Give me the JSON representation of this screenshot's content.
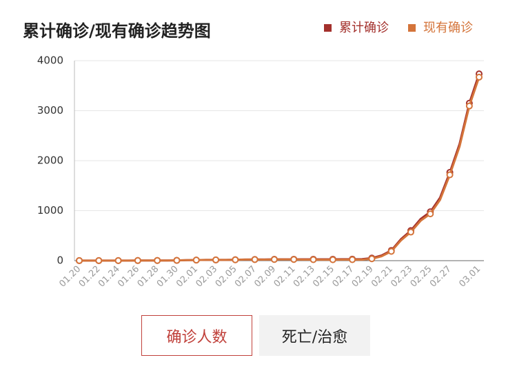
{
  "chart_data": {
    "type": "line",
    "title": "累计确诊/现有确诊趋势图",
    "categories": [
      "01.20",
      null,
      "01.22",
      null,
      "01.24",
      null,
      "01.26",
      null,
      "01.28",
      null,
      "01.30",
      null,
      "02.01",
      null,
      "02.03",
      null,
      "02.05",
      null,
      "02.07",
      null,
      "02.09",
      null,
      "02.11",
      null,
      "02.13",
      null,
      "02.15",
      null,
      "02.17",
      null,
      "02.19",
      null,
      "02.21",
      null,
      "02.23",
      null,
      "02.25",
      null,
      "02.27",
      null,
      null,
      "03.01"
    ],
    "series": [
      {
        "name": "累计确诊",
        "color": "#a3302c",
        "values": [
          1,
          1,
          1,
          1,
          2,
          2,
          3,
          4,
          4,
          4,
          6,
          11,
          12,
          15,
          15,
          16,
          19,
          23,
          24,
          24,
          27,
          27,
          28,
          28,
          28,
          28,
          28,
          29,
          30,
          31,
          51,
          104,
          204,
          433,
          602,
          833,
          977,
          1261,
          1766,
          2337,
          3150,
          3736
        ]
      },
      {
        "name": "现有确诊",
        "color": "#d4743a",
        "values": [
          1,
          1,
          1,
          1,
          2,
          2,
          3,
          4,
          4,
          4,
          6,
          11,
          12,
          15,
          15,
          16,
          18,
          22,
          22,
          21,
          24,
          24,
          24,
          21,
          21,
          19,
          19,
          20,
          21,
          19,
          38,
          87,
          186,
          408,
          572,
          797,
          937,
          1217,
          1718,
          2285,
          3094,
          3671
        ]
      }
    ],
    "ylim": [
      0,
      4000
    ],
    "yticks": [
      0,
      1000,
      2000,
      3000,
      4000
    ],
    "grid": true,
    "legend": "top-right",
    "buttons": [
      "确诊人数",
      "死亡/治愈"
    ]
  }
}
